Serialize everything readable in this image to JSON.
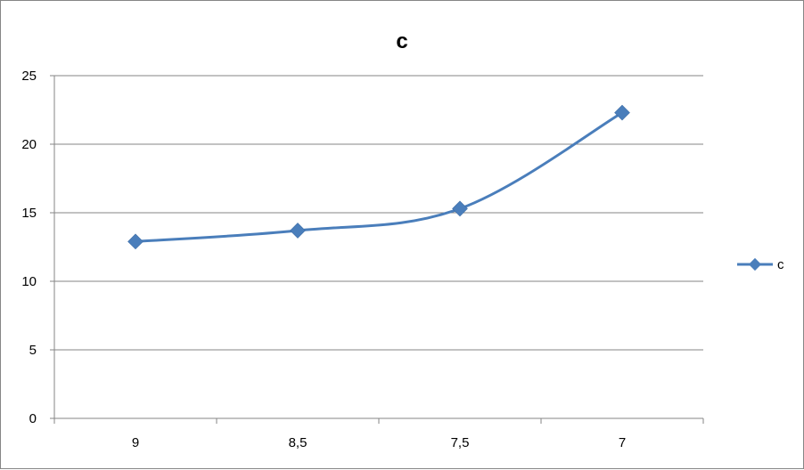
{
  "chart_data": {
    "type": "line",
    "title": "c",
    "categories": [
      "9",
      "8,5",
      "7,5",
      "7"
    ],
    "series": [
      {
        "name": "c",
        "values": [
          12.9,
          13.7,
          15.3,
          22.3
        ]
      }
    ],
    "ylim": [
      0,
      25
    ],
    "yticks": [
      "0",
      "5",
      "10",
      "15",
      "20",
      "25"
    ],
    "grid": "horizontal",
    "legend": "right",
    "smooth": true,
    "colors": {
      "series": "#4A7EBB",
      "grid": "#868686",
      "axis": "#868686"
    }
  }
}
